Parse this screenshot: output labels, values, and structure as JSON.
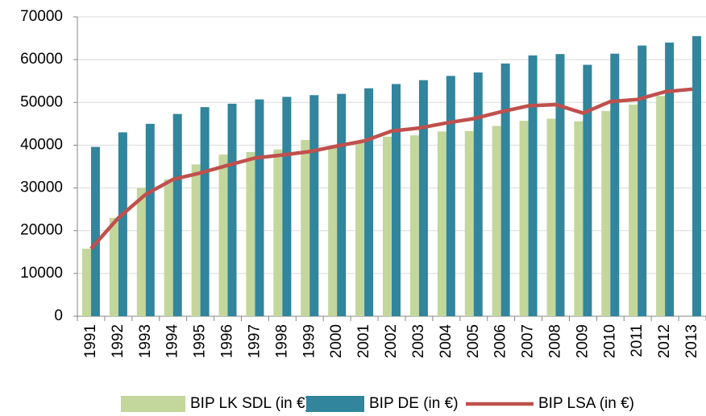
{
  "chart_data": {
    "type": "bar",
    "categories": [
      "1991",
      "1992",
      "1993",
      "1994",
      "1995",
      "1996",
      "1997",
      "1998",
      "1999",
      "2000",
      "2001",
      "2002",
      "2003",
      "2004",
      "2005",
      "2006",
      "2007",
      "2008",
      "2009",
      "2010",
      "2011",
      "2012",
      "2013"
    ],
    "series": [
      {
        "name": "BIP LK SDL (in €)",
        "type": "bar",
        "color": "#c3d69b",
        "values": [
          15800,
          23000,
          30000,
          32000,
          35500,
          37800,
          38400,
          39000,
          41200,
          39500,
          40500,
          42000,
          42300,
          43200,
          43300,
          44500,
          45700,
          46200,
          45600,
          48000,
          49500,
          51500,
          null
        ]
      },
      {
        "name": "BIP DE (in €)",
        "type": "bar",
        "color": "#31859c",
        "values": [
          39600,
          43000,
          45000,
          47300,
          48900,
          49700,
          50700,
          51300,
          51700,
          52000,
          53300,
          54300,
          55200,
          56200,
          57000,
          59100,
          61000,
          61300,
          58800,
          61400,
          63300,
          64000,
          65500
        ]
      },
      {
        "name": "BIP LSA (in €)",
        "type": "line",
        "color": "#c0504d",
        "values": [
          15800,
          23000,
          28500,
          32000,
          33500,
          35300,
          37000,
          37700,
          38500,
          39800,
          41000,
          43300,
          44000,
          45200,
          46200,
          47800,
          49200,
          49500,
          47500,
          50200,
          50700,
          52500,
          53100
        ]
      }
    ],
    "ylim": [
      0,
      70000
    ],
    "yticks": [
      0,
      10000,
      20000,
      30000,
      40000,
      50000,
      60000,
      70000
    ],
    "grid": true,
    "legend": "bottom"
  }
}
